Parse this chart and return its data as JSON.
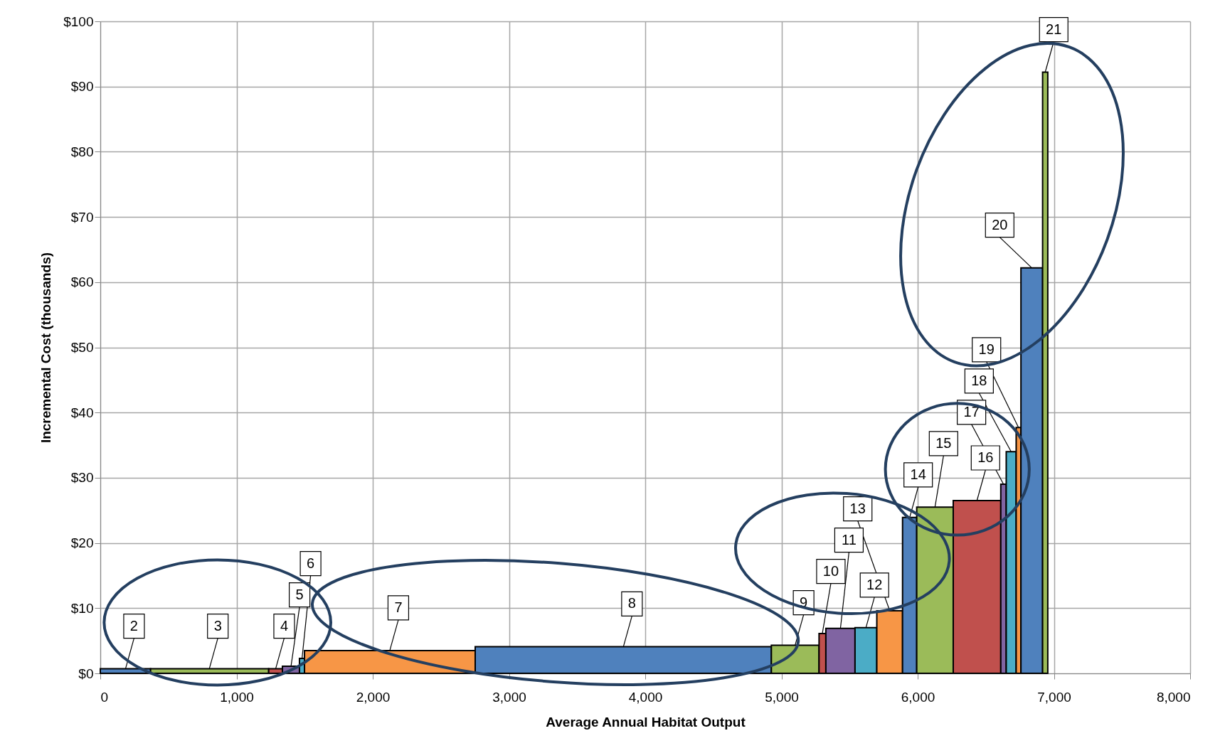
{
  "chart_data": {
    "type": "histogram",
    "xlabel": "Average Annual Habitat Output",
    "ylabel": "Incremental Cost (thousands)",
    "bins": [
      0,
      369,
      1236,
      1337,
      1462,
      1499,
      2752,
      4926,
      5276,
      5326,
      5540,
      5700,
      5889,
      5993,
      6261,
      6610,
      6650,
      6723,
      6758,
      6917,
      6955
    ],
    "values": [
      0.7,
      0.7,
      0.7,
      1.1,
      2.3,
      3.5,
      4.1,
      4.3,
      6.1,
      6.9,
      7.0,
      9.6,
      23.9,
      25.5,
      26.5,
      29.0,
      34.0,
      37.7,
      62.2,
      92.2
    ],
    "colors": [
      "#4f81bd",
      "#9bbb59",
      "#c0504d",
      "#8064a2",
      "#4bacc6",
      "#f79646",
      "#4f81bd",
      "#9bbb59",
      "#c0504d",
      "#8064a2",
      "#4bacc6",
      "#f79646",
      "#4f81bd",
      "#9bbb59",
      "#c0504d",
      "#8064a2",
      "#4bacc6",
      "#f79646",
      "#4f81bd",
      "#9bbb59"
    ],
    "xlim": [
      0,
      8000
    ],
    "ylim": [
      0,
      100
    ],
    "xticks": [
      0,
      {
        "value": 1000,
        "label": "1,000"
      },
      {
        "value": 2000,
        "label": "2,000"
      },
      {
        "value": 3000,
        "label": "3,000"
      },
      {
        "value": 4000,
        "label": "4,000"
      },
      {
        "value": 5000,
        "label": "5,000"
      },
      {
        "value": 6000,
        "label": "6,000"
      },
      {
        "value": 7000,
        "label": "7,000"
      },
      {
        "value": 8000,
        "label": "8,000"
      }
    ],
    "yticks": [
      {
        "value": 0,
        "label": "$0"
      },
      {
        "value": 10,
        "label": "$10"
      },
      {
        "value": 20,
        "label": "$20"
      },
      {
        "value": 30,
        "label": "$30"
      },
      {
        "value": 40,
        "label": "$40"
      },
      {
        "value": 50,
        "label": "$50"
      },
      {
        "value": 60,
        "label": "$60"
      },
      {
        "value": 70,
        "label": "$70"
      },
      {
        "value": 80,
        "label": "$80"
      },
      {
        "value": 90,
        "label": "$90"
      },
      {
        "value": 100,
        "label": "$100"
      }
    ],
    "grid": true,
    "annotations": [
      {
        "text": "2",
        "x": 185,
        "y": 0.7
      },
      {
        "text": "3",
        "x": 800,
        "y": 0.7
      },
      {
        "text": "4",
        "x": 1287,
        "y": 0.7
      },
      {
        "text": "5",
        "x": 1400,
        "y": 1.1
      },
      {
        "text": "6",
        "x": 1481,
        "y": 2.3
      },
      {
        "text": "7",
        "x": 2125,
        "y": 3.5
      },
      {
        "text": "8",
        "x": 3840,
        "y": 4.1
      },
      {
        "text": "9",
        "x": 5100,
        "y": 4.3
      },
      {
        "text": "10",
        "x": 5300,
        "y": 6.1
      },
      {
        "text": "11",
        "x": 5433,
        "y": 6.9
      },
      {
        "text": "12",
        "x": 5620,
        "y": 7.0
      },
      {
        "text": "13",
        "x": 5795,
        "y": 9.6
      },
      {
        "text": "14",
        "x": 5941,
        "y": 23.9
      },
      {
        "text": "15",
        "x": 6127,
        "y": 25.5
      },
      {
        "text": "16",
        "x": 6435,
        "y": 26.5
      },
      {
        "text": "17",
        "x": 6630,
        "y": 29.0
      },
      {
        "text": "18",
        "x": 6686,
        "y": 34.0
      },
      {
        "text": "19",
        "x": 6740,
        "y": 37.7
      },
      {
        "text": "20",
        "x": 6837,
        "y": 62.2
      },
      {
        "text": "21",
        "x": 6936,
        "y": 92.2
      }
    ]
  }
}
